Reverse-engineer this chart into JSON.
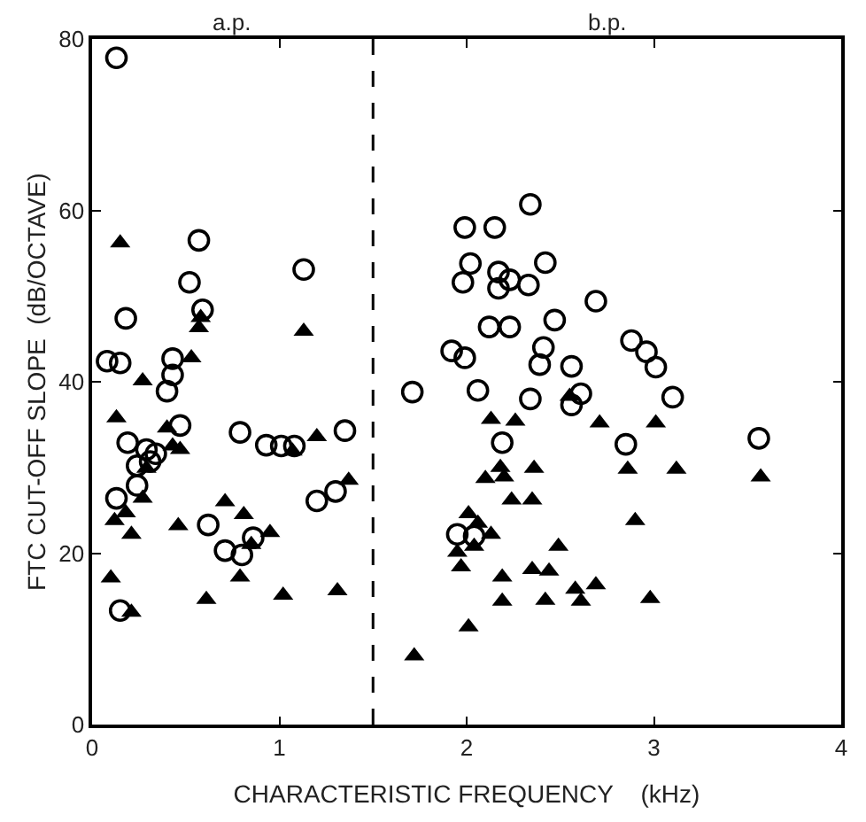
{
  "chart_data": {
    "type": "scatter",
    "xlabel": "CHARACTERISTIC FREQUENCY    (kHz)",
    "ylabel": "FTC CUT-OFF SLOPE  (dB/OCTAVE)",
    "annotations": [
      "a.p.",
      "b.p."
    ],
    "xlim": [
      0,
      4
    ],
    "xticks": [
      0,
      1,
      2,
      3,
      4
    ],
    "ylim": [
      0,
      80
    ],
    "yticks": [
      0,
      20,
      40,
      60,
      80
    ],
    "ref_lines": [
      {
        "axis": "x",
        "value": 1.5,
        "color": "#000000",
        "line_style": "dashed"
      }
    ],
    "series": [
      {
        "color": "#000000",
        "marker": "circle",
        "x": [
          0.13,
          0.57,
          1.13,
          0.52,
          0.18,
          0.59,
          0.08,
          0.15,
          0.43,
          0.43,
          0.4,
          0.47,
          0.79,
          0.19,
          0.93,
          1.01,
          1.08,
          1.35,
          0.29,
          0.34,
          0.24,
          0.31,
          1.3,
          1.2,
          0.24,
          0.13,
          0.62,
          0.86,
          0.71,
          0.8,
          0.15,
          2.34,
          1.99,
          2.15,
          2.02,
          2.42,
          2.17,
          2.23,
          1.98,
          2.17,
          2.33,
          2.69,
          2.47,
          2.12,
          2.23,
          2.88,
          2.96,
          3.01,
          1.92,
          1.99,
          2.41,
          2.39,
          2.56,
          1.71,
          2.06,
          2.34,
          2.61,
          2.56,
          2.19,
          2.85,
          1.95,
          2.04,
          3.1,
          3.56
        ],
        "values": [
          77.8,
          56.5,
          53.1,
          51.6,
          47.4,
          48.4,
          42.4,
          42.2,
          42.7,
          40.8,
          38.9,
          34.9,
          34.1,
          32.9,
          32.6,
          32.5,
          32.5,
          34.3,
          32.1,
          31.6,
          30.2,
          30.7,
          27.2,
          26.1,
          27.9,
          26.4,
          23.3,
          21.8,
          20.3,
          19.8,
          13.3,
          60.7,
          58.0,
          58.0,
          53.8,
          53.9,
          52.8,
          51.9,
          51.6,
          50.9,
          51.3,
          49.4,
          47.2,
          46.4,
          46.4,
          44.8,
          43.5,
          41.7,
          43.6,
          42.8,
          44.0,
          42.0,
          41.8,
          38.8,
          39.0,
          38.0,
          38.6,
          37.3,
          32.9,
          32.7,
          22.2,
          22.0,
          38.2,
          33.4
        ]
      },
      {
        "color": "#000000",
        "marker": "triangle",
        "x": [
          0.15,
          0.58,
          0.57,
          1.13,
          0.53,
          0.27,
          0.13,
          0.4,
          0.43,
          0.47,
          1.07,
          1.2,
          0.29,
          1.37,
          0.27,
          0.71,
          0.81,
          0.18,
          0.12,
          0.21,
          0.46,
          0.95,
          0.85,
          0.1,
          0.79,
          0.61,
          1.02,
          1.31,
          0.21,
          2.13,
          2.26,
          2.71,
          3.01,
          2.18,
          2.36,
          2.86,
          2.1,
          2.2,
          2.24,
          2.35,
          2.9,
          2.01,
          2.06,
          2.13,
          1.95,
          2.04,
          1.97,
          2.49,
          2.19,
          2.35,
          2.44,
          2.58,
          2.69,
          2.61,
          2.19,
          2.42,
          2.98,
          2.01,
          1.72,
          2.55,
          3.12,
          3.57
        ],
        "values": [
          56.2,
          47.5,
          46.3,
          45.9,
          42.8,
          40.1,
          35.8,
          34.6,
          32.5,
          32.1,
          31.9,
          33.6,
          29.9,
          28.5,
          26.4,
          26.0,
          24.5,
          24.7,
          23.8,
          22.2,
          23.2,
          22.4,
          21.0,
          17.1,
          17.2,
          14.6,
          15.1,
          15.6,
          13.1,
          35.6,
          35.4,
          35.2,
          35.2,
          30.0,
          29.9,
          29.8,
          28.7,
          28.9,
          26.2,
          26.2,
          23.8,
          24.6,
          23.5,
          22.2,
          20.1,
          20.8,
          18.4,
          20.8,
          17.2,
          18.1,
          17.9,
          15.8,
          16.3,
          14.4,
          14.4,
          14.5,
          14.7,
          11.4,
          8.0,
          38.3,
          29.8,
          28.9
        ]
      }
    ]
  }
}
